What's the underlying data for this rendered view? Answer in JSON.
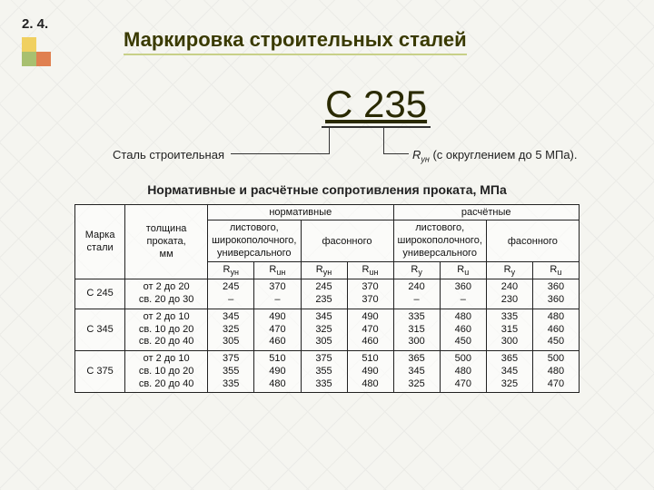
{
  "section_number": "2. 4.",
  "title": "Маркировка строительных сталей",
  "big_label": "С 235",
  "left_caption": "Сталь строительная",
  "right_caption_prefix": "R",
  "right_caption_sub": "ун",
  "right_caption_rest": " (с округлением до 5 МПа).",
  "subheading": "Нормативные и расчётные сопротивления проката, МПа",
  "headers": {
    "grade": "Марка\nстали",
    "thickness": "толщина\nпроката,\nмм",
    "normative": "нормативные",
    "calculated": "расчётные",
    "sheet": "листового,\nширокополочного,\nуниверсального",
    "shaped": "фасонного",
    "Ryn": "R",
    "Ryn_sub": "yн",
    "Run": "R",
    "Run_sub": "uн",
    "Ry": "R",
    "Ry_sub": "y",
    "Ru": "R",
    "Ru_sub": "u"
  },
  "rows": [
    {
      "grade": "С 245",
      "thickness": "от 2 до 20\nсв. 20 до 30",
      "c": [
        "245\n–",
        "370\n–",
        "245\n235",
        "370\n370",
        "240\n–",
        "360\n–",
        "240\n230",
        "360\n360"
      ]
    },
    {
      "grade": "С 345",
      "thickness": "от 2 до 10\nсв. 10 до 20\nсв. 20 до 40",
      "c": [
        "345\n325\n305",
        "490\n470\n460",
        "345\n325\n305",
        "490\n470\n460",
        "335\n315\n300",
        "480\n460\n450",
        "335\n315\n300",
        "480\n460\n450"
      ]
    },
    {
      "grade": "С 375",
      "thickness": "от 2 до 10\nсв. 10 до 20\nсв. 20 до 40",
      "c": [
        "375\n355\n335",
        "510\n490\n480",
        "375\n355\n335",
        "510\n490\n480",
        "365\n345\n325",
        "500\n480\n470",
        "365\n345\n325",
        "500\n480\n470"
      ]
    }
  ]
}
